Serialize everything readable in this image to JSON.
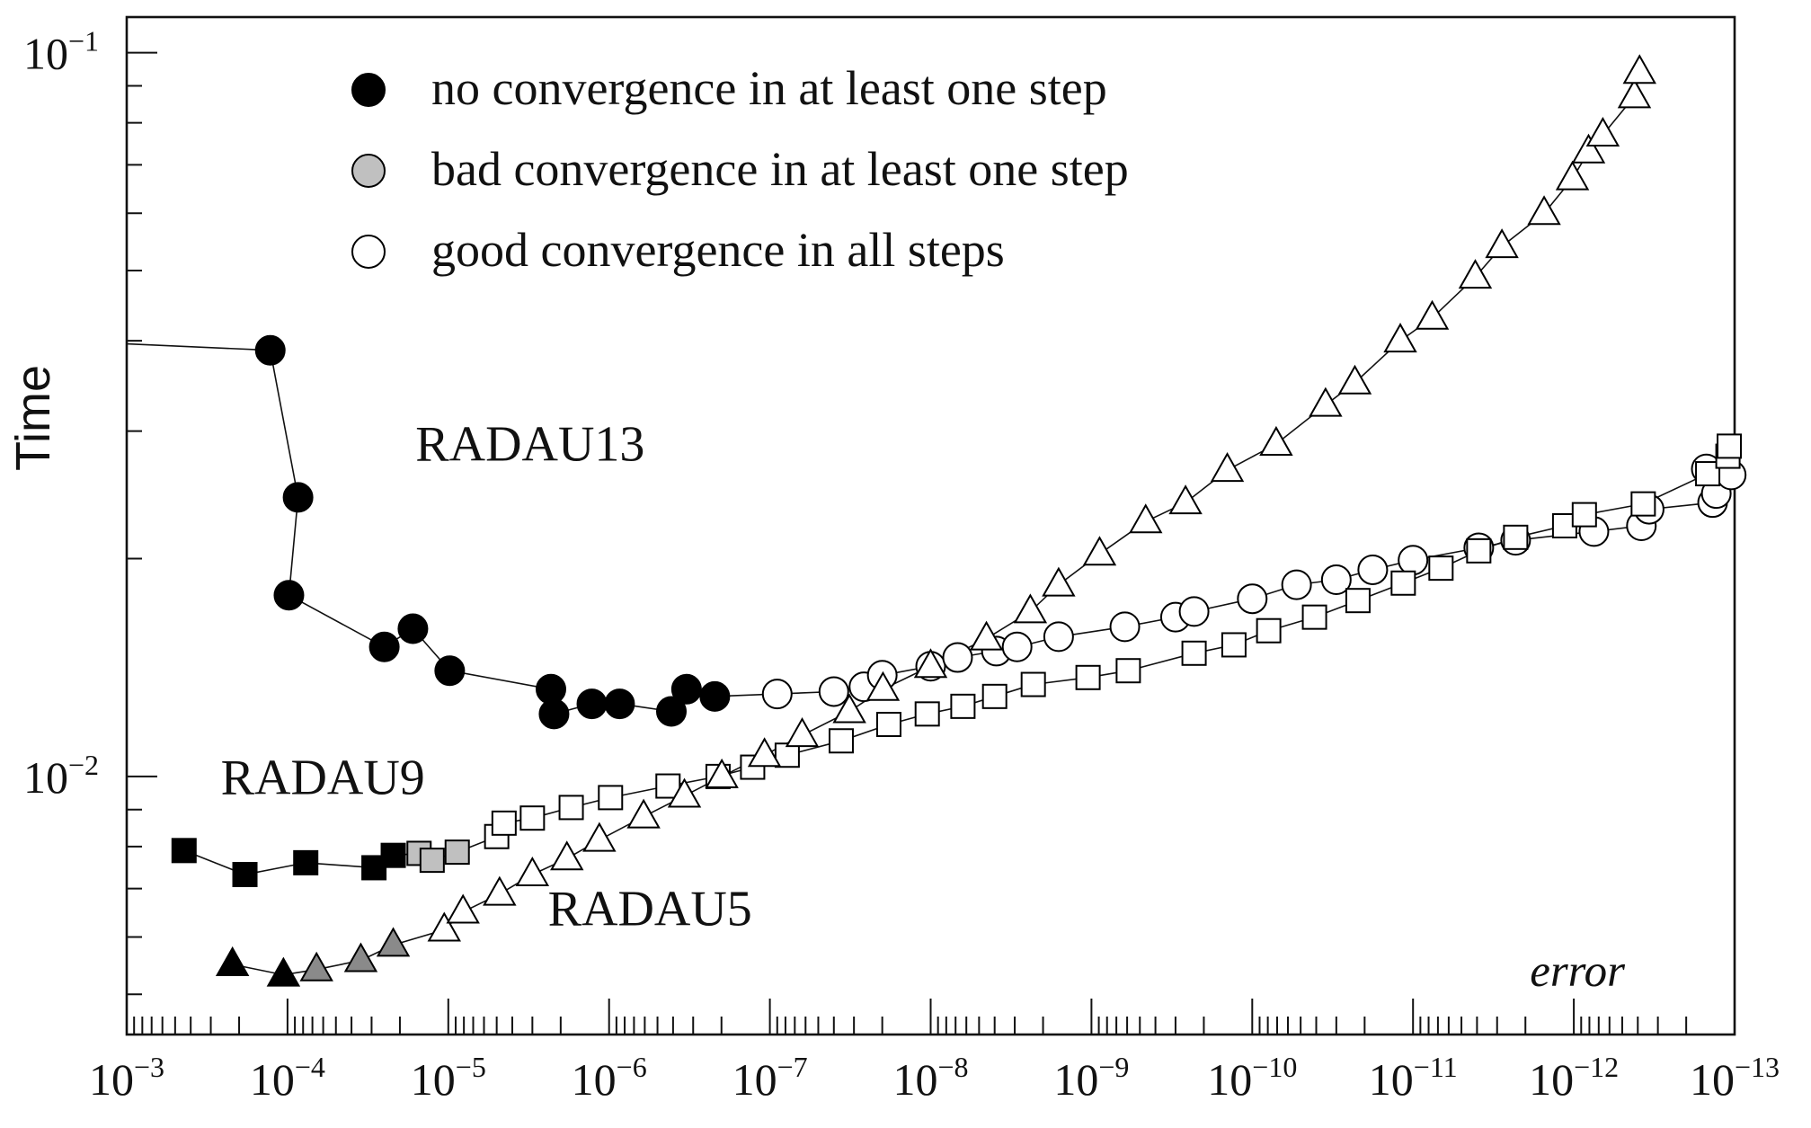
{
  "chart_data": {
    "type": "scatter",
    "title": "",
    "xlabel": "error",
    "ylabel": "Time",
    "x_scale": "log",
    "y_scale": "log",
    "x_direction": "decreasing",
    "xlim": [
      0.001,
      1e-13
    ],
    "ylim": [
      0.0044,
      0.112
    ],
    "x_ticks": [
      {
        "value": 0.001,
        "mant": "10",
        "exp": "−3"
      },
      {
        "value": 0.0001,
        "mant": "10",
        "exp": "−4"
      },
      {
        "value": 1e-05,
        "mant": "10",
        "exp": "−5"
      },
      {
        "value": 1e-06,
        "mant": "10",
        "exp": "−6"
      },
      {
        "value": 1e-07,
        "mant": "10",
        "exp": "−7"
      },
      {
        "value": 1e-08,
        "mant": "10",
        "exp": "−8"
      },
      {
        "value": 1e-09,
        "mant": "10",
        "exp": "−9"
      },
      {
        "value": 1e-10,
        "mant": "10",
        "exp": "−10"
      },
      {
        "value": 1e-11,
        "mant": "10",
        "exp": "−11"
      },
      {
        "value": 1e-12,
        "mant": "10",
        "exp": "−12"
      },
      {
        "value": 1e-13,
        "mant": "10",
        "exp": "−13"
      }
    ],
    "y_ticks": [
      {
        "value": 0.1,
        "mant": "10",
        "exp": "−1"
      },
      {
        "value": 0.01,
        "mant": "10",
        "exp": "−2"
      }
    ],
    "grid": false,
    "legend": {
      "position": "top-left",
      "items": [
        {
          "label": "no convergence in at least one step",
          "fill": "#000000"
        },
        {
          "label": "bad convergence in at least one step",
          "fill": "#c0c0c0"
        },
        {
          "label": "good convergence in all steps",
          "fill": "#ffffff"
        }
      ]
    },
    "series": [
      {
        "name": "RADAU13",
        "marker": "circle",
        "points": [
          {
            "x": 0.001,
            "y": 0.0396,
            "c": "none"
          },
          {
            "x": 0.000128,
            "y": 0.0388,
            "c": "no"
          },
          {
            "x": 8.6e-05,
            "y": 0.0243,
            "c": "no"
          },
          {
            "x": 9.8e-05,
            "y": 0.0178,
            "c": "no"
          },
          {
            "x": 2.5e-05,
            "y": 0.0151,
            "c": "no"
          },
          {
            "x": 1.66e-05,
            "y": 0.016,
            "c": "no"
          },
          {
            "x": 9.8e-06,
            "y": 0.014,
            "c": "no"
          },
          {
            "x": 2.3e-06,
            "y": 0.0132,
            "c": "no"
          },
          {
            "x": 2.2e-06,
            "y": 0.0122,
            "c": "no"
          },
          {
            "x": 1.28e-06,
            "y": 0.0126,
            "c": "no"
          },
          {
            "x": 8.6e-07,
            "y": 0.0126,
            "c": "no"
          },
          {
            "x": 4.1e-07,
            "y": 0.0123,
            "c": "no"
          },
          {
            "x": 3.3e-07,
            "y": 0.0132,
            "c": "no"
          },
          {
            "x": 2.2e-07,
            "y": 0.0129,
            "c": "no"
          },
          {
            "x": 9e-08,
            "y": 0.013,
            "c": "good"
          },
          {
            "x": 4e-08,
            "y": 0.0131,
            "c": "good"
          },
          {
            "x": 2.6e-08,
            "y": 0.0133,
            "c": "good"
          },
          {
            "x": 2e-08,
            "y": 0.0138,
            "c": "good"
          },
          {
            "x": 1e-08,
            "y": 0.0142,
            "c": "good"
          },
          {
            "x": 6.8e-09,
            "y": 0.0146,
            "c": "good"
          },
          {
            "x": 3.9e-09,
            "y": 0.0149,
            "c": "good"
          },
          {
            "x": 2.9e-09,
            "y": 0.0151,
            "c": "good"
          },
          {
            "x": 1.6e-09,
            "y": 0.0156,
            "c": "good"
          },
          {
            "x": 6.2e-10,
            "y": 0.0161,
            "c": "good"
          },
          {
            "x": 3e-10,
            "y": 0.0166,
            "c": "good"
          },
          {
            "x": 2.3e-10,
            "y": 0.0169,
            "c": "good"
          },
          {
            "x": 1e-10,
            "y": 0.0176,
            "c": "good"
          },
          {
            "x": 5.3e-11,
            "y": 0.0184,
            "c": "good"
          },
          {
            "x": 3e-11,
            "y": 0.0187,
            "c": "good"
          },
          {
            "x": 1.78e-11,
            "y": 0.0193,
            "c": "good"
          },
          {
            "x": 1e-11,
            "y": 0.0199,
            "c": "good"
          },
          {
            "x": 3.9e-12,
            "y": 0.0207,
            "c": "good"
          },
          {
            "x": 2.3e-12,
            "y": 0.0212,
            "c": "good"
          },
          {
            "x": 7.5e-13,
            "y": 0.0218,
            "c": "good"
          },
          {
            "x": 3.8e-13,
            "y": 0.0222,
            "c": "good"
          },
          {
            "x": 3.4e-13,
            "y": 0.0234,
            "c": "good"
          },
          {
            "x": 1.37e-13,
            "y": 0.0239,
            "c": "good"
          },
          {
            "x": 1.3e-13,
            "y": 0.0246,
            "c": "good"
          },
          {
            "x": 1.5e-13,
            "y": 0.0266,
            "c": "good"
          },
          {
            "x": 1.05e-13,
            "y": 0.0261,
            "c": "good"
          }
        ]
      },
      {
        "name": "RADAU9",
        "marker": "square",
        "points": [
          {
            "x": 0.00044,
            "y": 0.0079,
            "c": "no"
          },
          {
            "x": 0.000184,
            "y": 0.00732,
            "c": "no"
          },
          {
            "x": 7.7e-05,
            "y": 0.0076,
            "c": "no"
          },
          {
            "x": 2.9e-05,
            "y": 0.00748,
            "c": "no"
          },
          {
            "x": 2.2e-05,
            "y": 0.00778,
            "c": "no"
          },
          {
            "x": 1.52e-05,
            "y": 0.00783,
            "c": "bad"
          },
          {
            "x": 1.26e-05,
            "y": 0.00766,
            "c": "bad"
          },
          {
            "x": 8.8e-06,
            "y": 0.00786,
            "c": "bad"
          },
          {
            "x": 5e-06,
            "y": 0.00826,
            "c": "good"
          },
          {
            "x": 4.5e-06,
            "y": 0.00862,
            "c": "good"
          },
          {
            "x": 3e-06,
            "y": 0.00876,
            "c": "good"
          },
          {
            "x": 1.72e-06,
            "y": 0.00906,
            "c": "good"
          },
          {
            "x": 9.8e-07,
            "y": 0.00935,
            "c": "good"
          },
          {
            "x": 4.3e-07,
            "y": 0.0097,
            "c": "good"
          },
          {
            "x": 2.1e-07,
            "y": 0.01,
            "c": "good"
          },
          {
            "x": 1.28e-07,
            "y": 0.0103,
            "c": "good"
          },
          {
            "x": 7.8e-08,
            "y": 0.0107,
            "c": "good"
          },
          {
            "x": 3.6e-08,
            "y": 0.0112,
            "c": "good"
          },
          {
            "x": 1.82e-08,
            "y": 0.0118,
            "c": "good"
          },
          {
            "x": 1.05e-08,
            "y": 0.0122,
            "c": "good"
          },
          {
            "x": 6.3e-09,
            "y": 0.0125,
            "c": "good"
          },
          {
            "x": 4e-09,
            "y": 0.0129,
            "c": "good"
          },
          {
            "x": 2.3e-09,
            "y": 0.0134,
            "c": "good"
          },
          {
            "x": 1.05e-09,
            "y": 0.0137,
            "c": "good"
          },
          {
            "x": 5.9e-10,
            "y": 0.014,
            "c": "good"
          },
          {
            "x": 2.3e-10,
            "y": 0.0148,
            "c": "good"
          },
          {
            "x": 1.3e-10,
            "y": 0.0152,
            "c": "good"
          },
          {
            "x": 7.9e-11,
            "y": 0.0159,
            "c": "good"
          },
          {
            "x": 4.1e-11,
            "y": 0.0166,
            "c": "good"
          },
          {
            "x": 2.2e-11,
            "y": 0.0175,
            "c": "good"
          },
          {
            "x": 1.15e-11,
            "y": 0.0185,
            "c": "good"
          },
          {
            "x": 6.7e-12,
            "y": 0.0194,
            "c": "good"
          },
          {
            "x": 3.9e-12,
            "y": 0.0205,
            "c": "good"
          },
          {
            "x": 2.3e-12,
            "y": 0.0214,
            "c": "good"
          },
          {
            "x": 1.14e-12,
            "y": 0.0222,
            "c": "good"
          },
          {
            "x": 8.6e-13,
            "y": 0.023,
            "c": "good"
          },
          {
            "x": 3.7e-13,
            "y": 0.0238,
            "c": "good"
          },
          {
            "x": 1.47e-13,
            "y": 0.0262,
            "c": "good"
          },
          {
            "x": 1.1e-13,
            "y": 0.0277,
            "c": "good"
          },
          {
            "x": 1.08e-13,
            "y": 0.0286,
            "c": "good"
          }
        ]
      },
      {
        "name": "RADAU5",
        "marker": "triangle",
        "points": [
          {
            "x": 0.00022,
            "y": 0.0055,
            "c": "no"
          },
          {
            "x": 0.000106,
            "y": 0.00532,
            "c": "no"
          },
          {
            "x": 6.6e-05,
            "y": 0.00541,
            "c": "bad"
          },
          {
            "x": 3.5e-05,
            "y": 0.00557,
            "c": "bad"
          },
          {
            "x": 2.2e-05,
            "y": 0.00585,
            "c": "bad"
          },
          {
            "x": 1.06e-05,
            "y": 0.00614,
            "c": "good"
          },
          {
            "x": 8.1e-06,
            "y": 0.0065,
            "c": "good"
          },
          {
            "x": 4.8e-06,
            "y": 0.00688,
            "c": "good"
          },
          {
            "x": 3e-06,
            "y": 0.00732,
            "c": "good"
          },
          {
            "x": 1.83e-06,
            "y": 0.0077,
            "c": "good"
          },
          {
            "x": 1.15e-06,
            "y": 0.00817,
            "c": "good"
          },
          {
            "x": 6.1e-07,
            "y": 0.0088,
            "c": "good"
          },
          {
            "x": 3.4e-07,
            "y": 0.0094,
            "c": "good"
          },
          {
            "x": 1.99e-07,
            "y": 0.01,
            "c": "good"
          },
          {
            "x": 1.08e-07,
            "y": 0.0107,
            "c": "good"
          },
          {
            "x": 6.3e-08,
            "y": 0.0114,
            "c": "good"
          },
          {
            "x": 3.2e-08,
            "y": 0.0123,
            "c": "good"
          },
          {
            "x": 1.98e-08,
            "y": 0.0132,
            "c": "good"
          },
          {
            "x": 1e-08,
            "y": 0.0142,
            "c": "good"
          },
          {
            "x": 4.5e-09,
            "y": 0.0155,
            "c": "good"
          },
          {
            "x": 2.4e-09,
            "y": 0.0169,
            "c": "good"
          },
          {
            "x": 1.6e-09,
            "y": 0.0184,
            "c": "good"
          },
          {
            "x": 8.9e-10,
            "y": 0.0203,
            "c": "good"
          },
          {
            "x": 4.6e-10,
            "y": 0.0225,
            "c": "good"
          },
          {
            "x": 2.6e-10,
            "y": 0.0239,
            "c": "good"
          },
          {
            "x": 1.43e-10,
            "y": 0.0265,
            "c": "good"
          },
          {
            "x": 7.1e-11,
            "y": 0.0288,
            "c": "good"
          },
          {
            "x": 3.5e-11,
            "y": 0.0326,
            "c": "good"
          },
          {
            "x": 2.3e-11,
            "y": 0.035,
            "c": "good"
          },
          {
            "x": 1.2e-11,
            "y": 0.04,
            "c": "good"
          },
          {
            "x": 7.6e-12,
            "y": 0.043,
            "c": "good"
          },
          {
            "x": 4.1e-12,
            "y": 0.049,
            "c": "good"
          },
          {
            "x": 2.8e-12,
            "y": 0.054,
            "c": "good"
          },
          {
            "x": 1.53e-12,
            "y": 0.06,
            "c": "good"
          },
          {
            "x": 1.02e-12,
            "y": 0.067,
            "c": "good"
          },
          {
            "x": 8.1e-13,
            "y": 0.073,
            "c": "good"
          },
          {
            "x": 6.6e-13,
            "y": 0.077,
            "c": "good"
          },
          {
            "x": 4.2e-13,
            "y": 0.087,
            "c": "good"
          },
          {
            "x": 3.9e-13,
            "y": 0.094,
            "c": "good"
          }
        ]
      }
    ],
    "annotations": [
      {
        "text": "RADAU13",
        "x": 1.6e-05,
        "y": 0.0273
      },
      {
        "text": "RADAU9",
        "x": 0.00026,
        "y": 0.00945
      },
      {
        "text": "RADAU5",
        "x": 2.4e-06,
        "y": 0.00623
      }
    ]
  }
}
